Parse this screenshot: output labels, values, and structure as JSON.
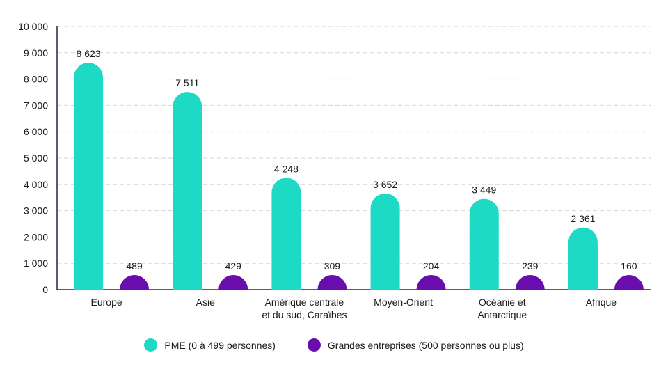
{
  "colors": {
    "pme": "#1ddac4",
    "grandes": "#6a0dad",
    "axis": "#1f2a44",
    "grid": "#d6d6d6"
  },
  "chart_data": {
    "type": "bar",
    "categories": [
      [
        "Europe"
      ],
      [
        "Asie"
      ],
      [
        "Amérique centrale",
        "et du sud, Caraïbes"
      ],
      [
        "Moyen-Orient"
      ],
      [
        "Océanie et",
        "Antarctique"
      ],
      [
        "Afrique"
      ]
    ],
    "series": [
      {
        "name": "PME (0 à 499 personnes)",
        "values": [
          8623,
          7511,
          4248,
          3652,
          3449,
          2361
        ],
        "labels": [
          "8 623",
          "7 511",
          "4 248",
          "3 652",
          "3 449",
          "2 361"
        ]
      },
      {
        "name": "Grandes entreprises (500 personnes ou plus)",
        "values": [
          489,
          429,
          309,
          204,
          239,
          160
        ],
        "labels": [
          "489",
          "429",
          "309",
          "204",
          "239",
          "160"
        ]
      }
    ],
    "ylim": [
      0,
      10000
    ],
    "yticks": [
      0,
      1000,
      2000,
      3000,
      4000,
      5000,
      6000,
      7000,
      8000,
      9000,
      10000
    ],
    "ytick_labels": [
      "0",
      "1 000",
      "2 000",
      "3 000",
      "4 000",
      "5 000",
      "6 000",
      "7 000",
      "8 000",
      "9 000",
      "10 000"
    ],
    "grid": true,
    "legend": "bottom"
  }
}
